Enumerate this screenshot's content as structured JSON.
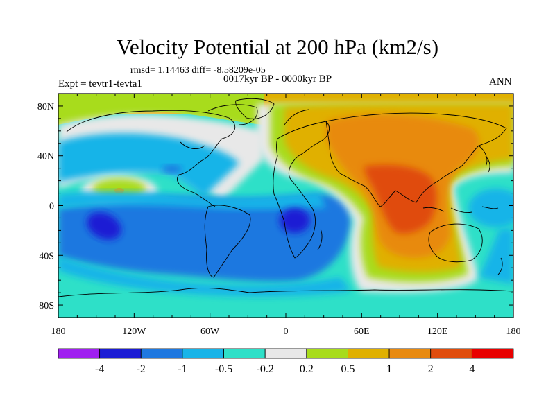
{
  "title": "Velocity Potential at 200 hPa (km2/s)",
  "stats_line": "rmsd= 1.14463 diff= -8.58209e-05",
  "period_line": "0017kyr BP - 0000kyr BP",
  "expt_line": "Expt = tevtr1-tevta1",
  "season_label": "ANN",
  "x_ticks": [
    {
      "label": "180",
      "lon": -180
    },
    {
      "label": "120W",
      "lon": -120
    },
    {
      "label": "60W",
      "lon": -60
    },
    {
      "label": "0",
      "lon": 0
    },
    {
      "label": "60E",
      "lon": 60
    },
    {
      "label": "120E",
      "lon": 120
    },
    {
      "label": "180",
      "lon": 180
    }
  ],
  "y_ticks": [
    {
      "label": "80N",
      "lat": 80
    },
    {
      "label": "40N",
      "lat": 40
    },
    {
      "label": "0",
      "lat": 0
    },
    {
      "label": "40S",
      "lat": -40
    },
    {
      "label": "80S",
      "lat": -80
    }
  ],
  "colorbar": {
    "colors": [
      "#a020f0",
      "#1c1cd4",
      "#1e78e0",
      "#18b4e8",
      "#2ee0c8",
      "#e8e8e8",
      "#a8dc1c",
      "#e0b000",
      "#e88a10",
      "#e04c0c",
      "#e80000"
    ],
    "labels": [
      "-4",
      "-2",
      "-1",
      "-0.5",
      "-0.2",
      "0.2",
      "0.5",
      "1",
      "2",
      "4"
    ]
  }
}
